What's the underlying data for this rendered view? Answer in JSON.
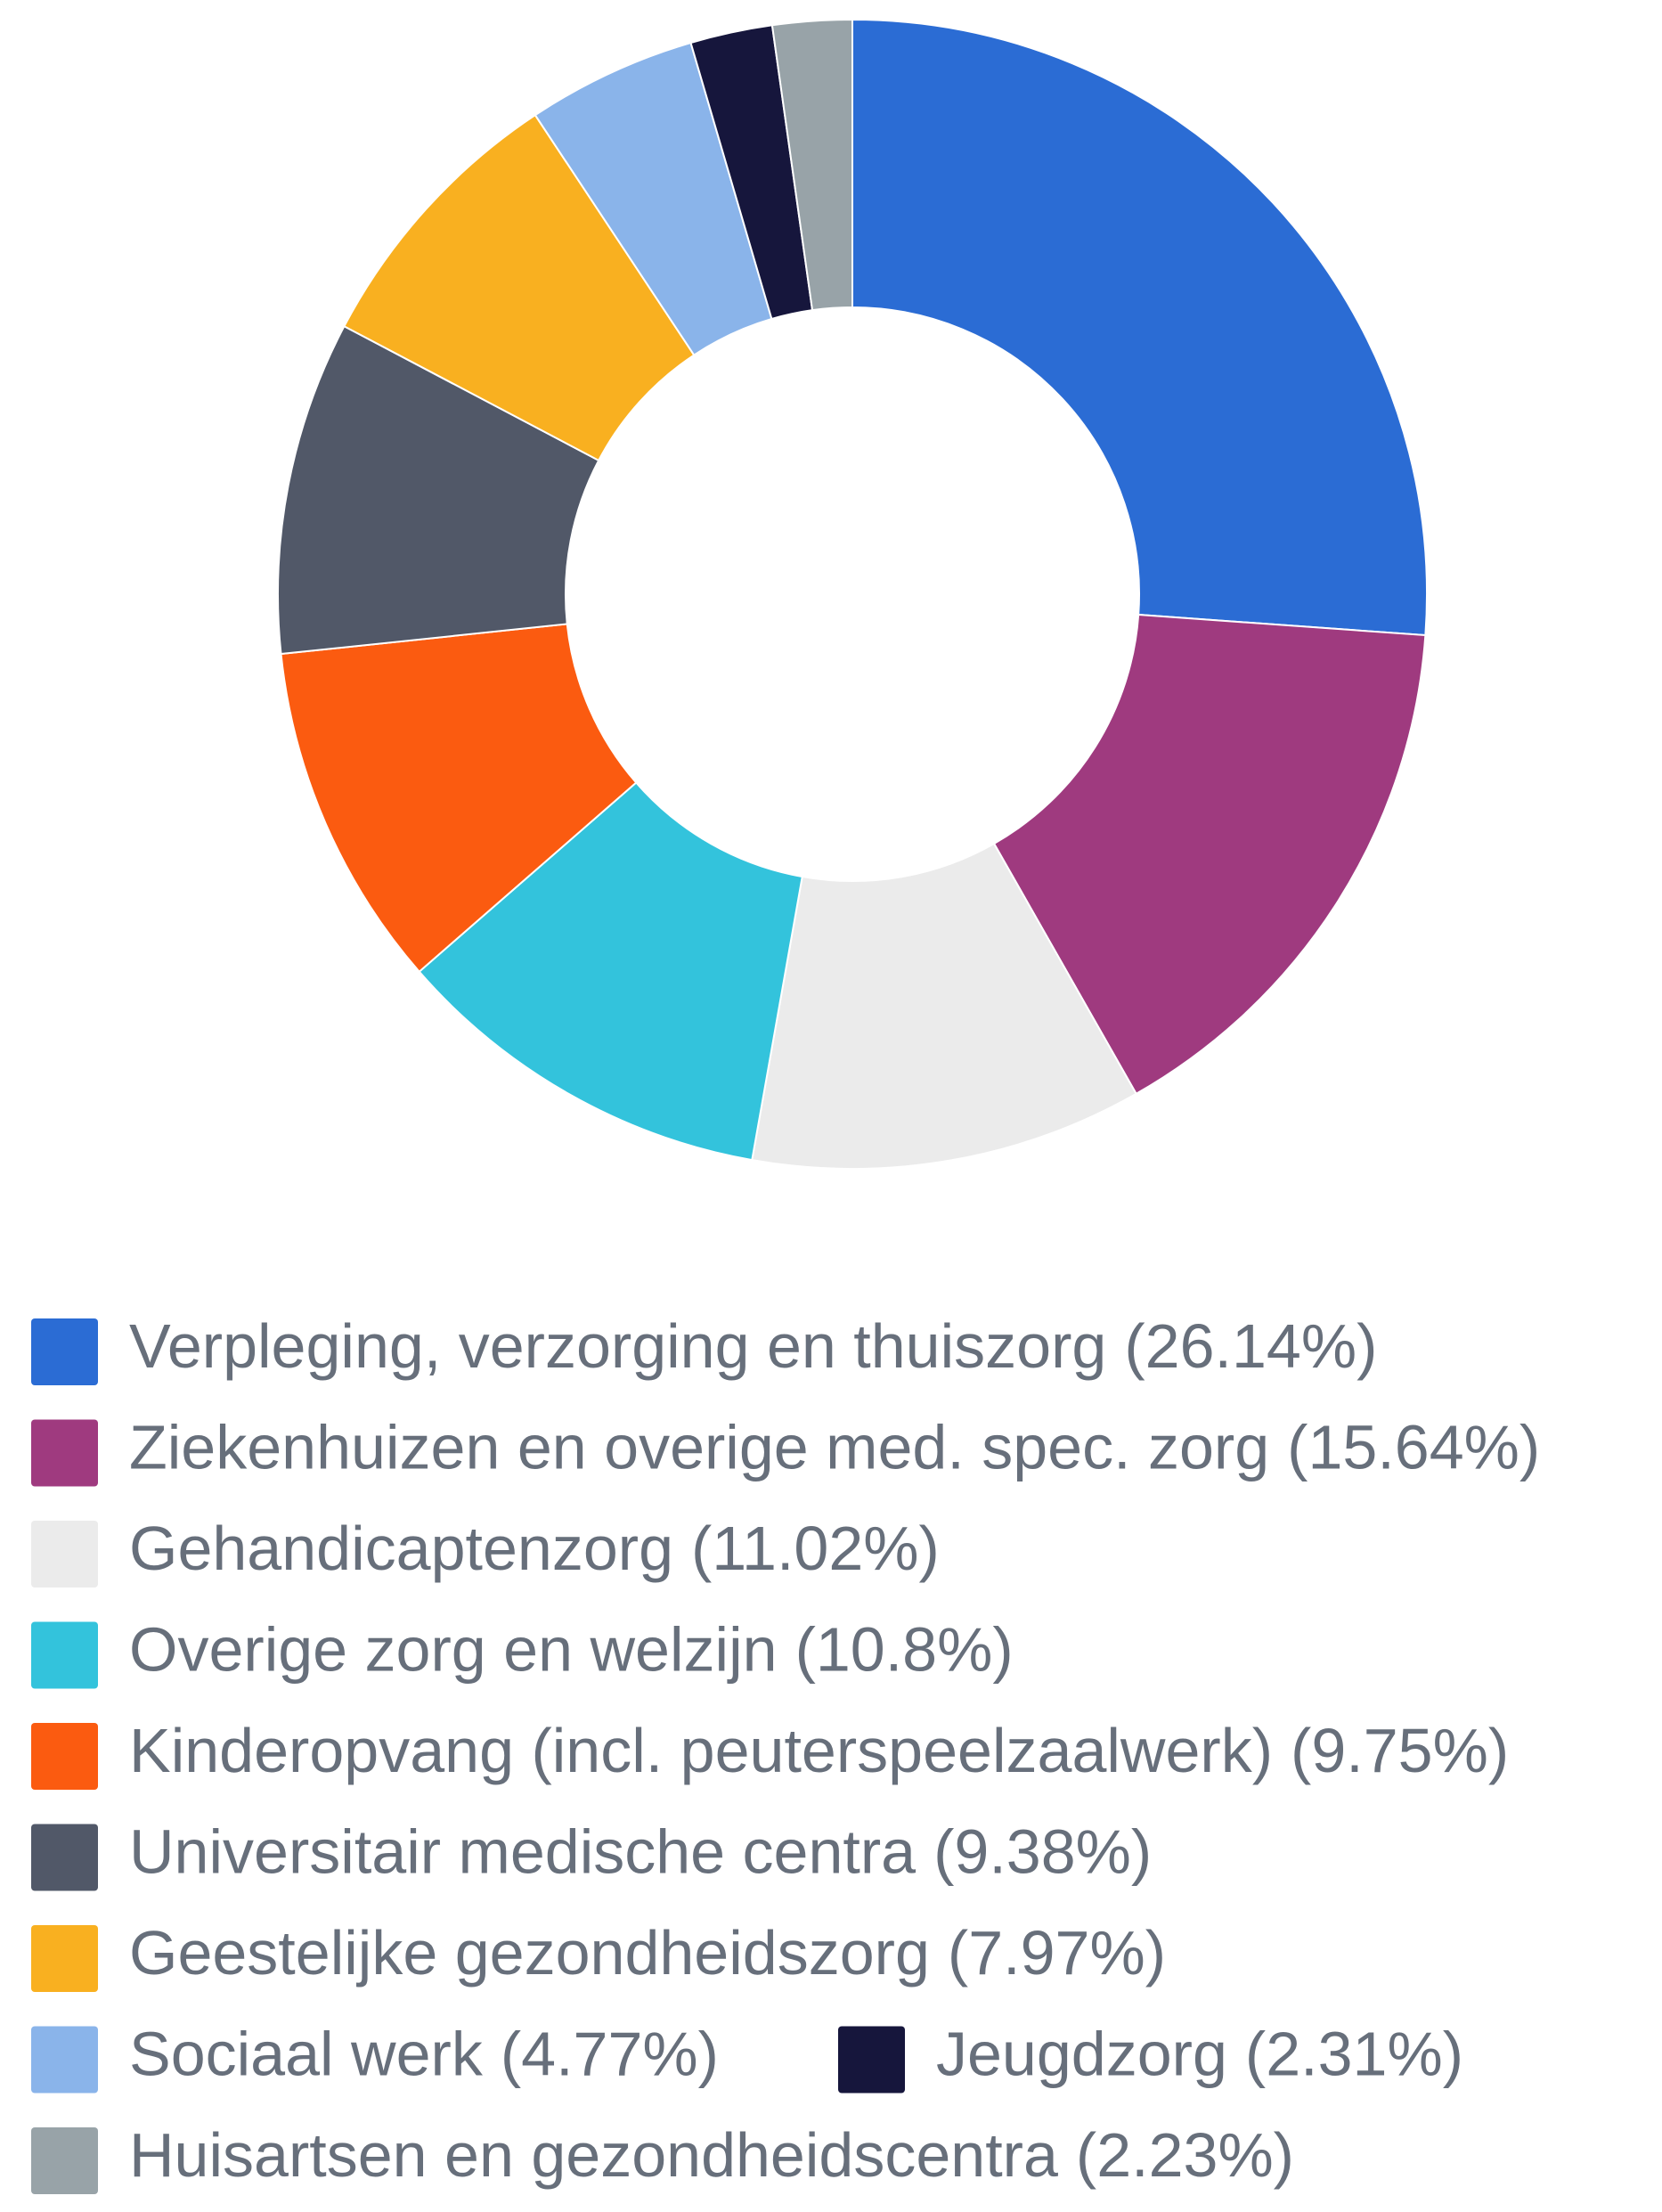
{
  "chart_data": {
    "type": "pie",
    "categories": [
      "Verpleging, verzorging en thuiszorg",
      "Ziekenhuizen en overige med. spec. zorg",
      "Gehandicaptenzorg",
      "Overige zorg en welzijn",
      "Kinderopvang (incl. peuterspeelzaalwerk)",
      "Universitair medische centra",
      "Geestelijke gezondheidszorg",
      "Sociaal werk",
      "Jeugdzorg",
      "Huisartsen en gezondheidscentra"
    ],
    "values": [
      26.14,
      15.64,
      11.02,
      10.8,
      9.75,
      9.38,
      7.97,
      4.77,
      2.31,
      2.23
    ],
    "value_labels": [
      "(26.14%)",
      "(15.64%)",
      "(11.02%)",
      "(10.8%)",
      "(9.75%)",
      "(9.38%)",
      "(7.97%)",
      "(4.77%)",
      "(2.31%)",
      "(2.23%)"
    ],
    "colors": [
      "#2b6cd4",
      "#9f3a7f",
      "#ebebeb",
      "#33c3dc",
      "#fb5b10",
      "#515868",
      "#f9b020",
      "#8ab4ea",
      "#16163c",
      "#98a3a8"
    ],
    "donut": true
  }
}
